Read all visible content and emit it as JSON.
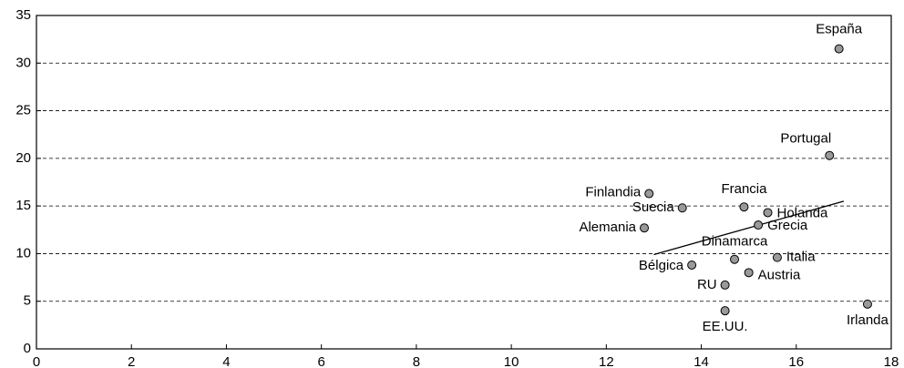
{
  "chart_data": {
    "type": "scatter",
    "points": [
      {
        "label": "España",
        "x": 16.9,
        "y": 31.5
      },
      {
        "label": "Portugal",
        "x": 16.7,
        "y": 20.3
      },
      {
        "label": "Finlandia",
        "x": 12.9,
        "y": 16.3
      },
      {
        "label": "Suecia",
        "x": 13.6,
        "y": 14.8
      },
      {
        "label": "Francia",
        "x": 14.9,
        "y": 14.9
      },
      {
        "label": "Holanda",
        "x": 15.4,
        "y": 14.3
      },
      {
        "label": "Alemania",
        "x": 12.8,
        "y": 12.7
      },
      {
        "label": "Grecia",
        "x": 15.2,
        "y": 13.0
      },
      {
        "label": "Dinamarca",
        "x": 14.7,
        "y": 9.4
      },
      {
        "label": "Italia",
        "x": 15.6,
        "y": 9.6
      },
      {
        "label": "Bélgica",
        "x": 13.8,
        "y": 8.8
      },
      {
        "label": "Austria",
        "x": 15.0,
        "y": 8.0
      },
      {
        "label": "RU",
        "x": 14.5,
        "y": 6.7
      },
      {
        "label": "EE.UU.",
        "x": 14.5,
        "y": 4.0
      },
      {
        "label": "Irlanda",
        "x": 17.5,
        "y": 4.7
      }
    ],
    "color": "#999999",
    "trendline": {
      "x": [
        13.0,
        17.0
      ],
      "y": [
        9.9,
        15.5
      ]
    },
    "xlim": [
      0,
      18
    ],
    "xticks": [
      0,
      2,
      4,
      6,
      8,
      10,
      12,
      14,
      16,
      18
    ],
    "ylim": [
      0,
      35
    ],
    "yticks": [
      0,
      5,
      10,
      15,
      20,
      25,
      30,
      35
    ],
    "grid": true
  }
}
